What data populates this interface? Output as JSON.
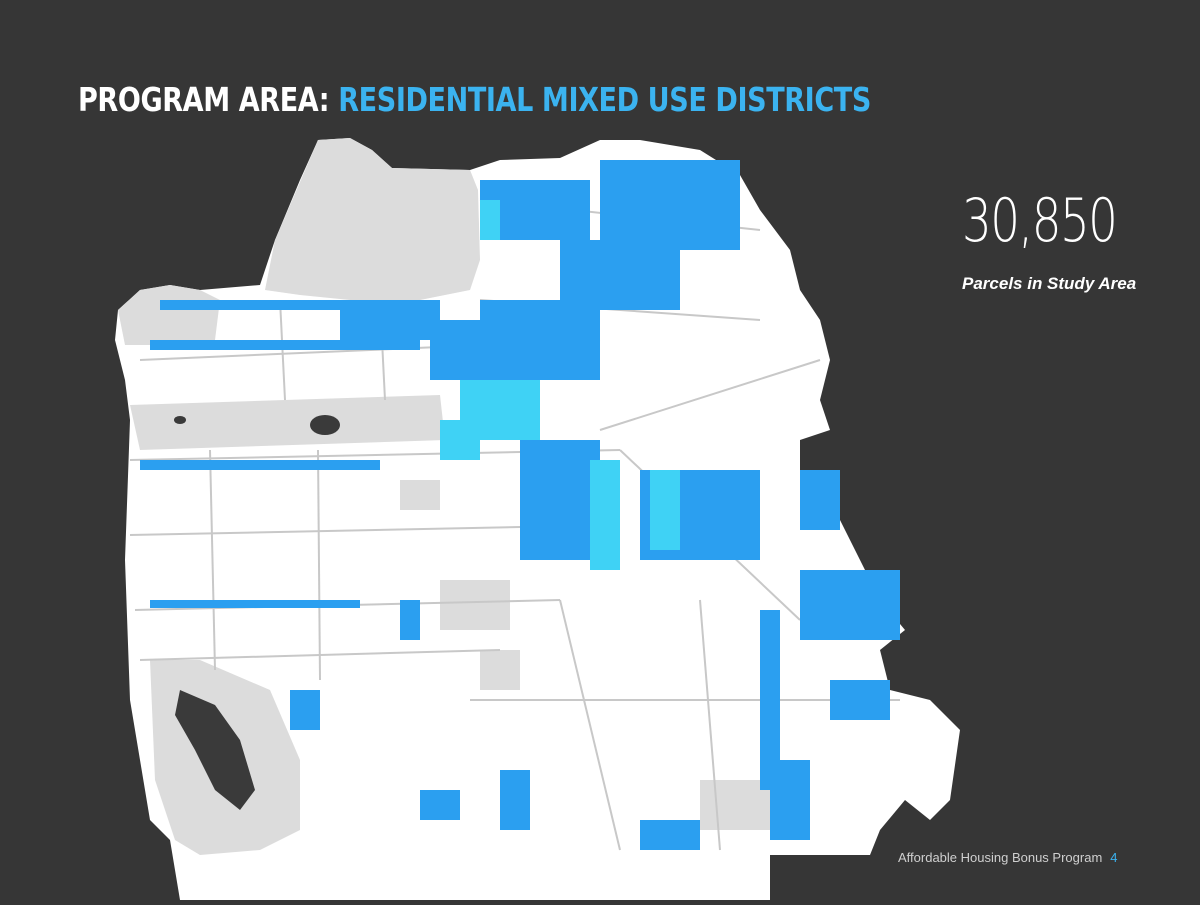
{
  "title": {
    "prefix": "PROGRAM AREA: ",
    "accent": "RESIDENTIAL MIXED USE DISTRICTS"
  },
  "stat": {
    "value": "30,850",
    "label": "Parcels in Study Area"
  },
  "footer": {
    "program_name": "Affordable Housing Bonus Program",
    "page_number": "4"
  },
  "colors": {
    "background": "#363636",
    "accent": "#3bb3f0",
    "district_blue": "#2b9ff0",
    "district_light": "#3fd2f5",
    "land": "#ffffff",
    "parks": "#dcdcdc",
    "streets": "#c8c8c8",
    "water_features": "#3a3a3a"
  }
}
